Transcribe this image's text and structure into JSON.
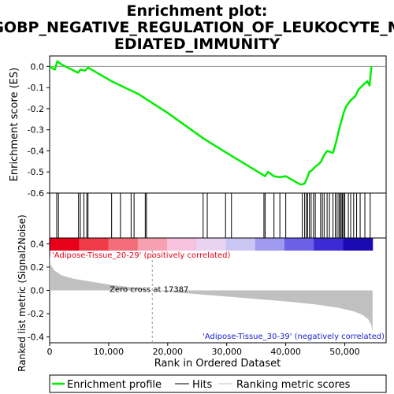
{
  "chart_data": {
    "type": "line",
    "title_lines": [
      "Enrichment plot:",
      "GOBP_NEGATIVE_REGULATION_OF_LEUKOCYTE_M",
      "EDIATED_IMMUNITY"
    ],
    "top_panel": {
      "ylabel": "Enrichment score (ES)",
      "ylim": [
        -0.6,
        0.05
      ],
      "yticks": [
        0.0,
        -0.1,
        -0.2,
        -0.3,
        -0.4,
        -0.5,
        -0.6
      ],
      "ytick_labels": [
        "0.0",
        "-0.1",
        "-0.2",
        "-0.3",
        "-0.4",
        "-0.5",
        "-0.6"
      ],
      "series": [
        {
          "name": "Enrichment profile",
          "color": "#00ee00",
          "x": [
            0,
            900,
            1300,
            2000,
            4800,
            5200,
            6000,
            6500,
            10500,
            15000,
            20000,
            26000,
            30000,
            36500,
            37000,
            38000,
            39000,
            40000,
            42500,
            43200,
            43600,
            44000,
            44500,
            45000,
            45500,
            46000,
            46500,
            47000,
            48000,
            48600,
            49000,
            49400,
            49800,
            50200,
            51000,
            51800,
            52300,
            53000,
            53800,
            54200,
            54500
          ],
          "y": [
            0.0,
            -0.015,
            0.025,
            0.01,
            -0.03,
            -0.015,
            -0.02,
            -0.005,
            -0.07,
            -0.13,
            -0.22,
            -0.34,
            -0.41,
            -0.52,
            -0.5,
            -0.52,
            -0.525,
            -0.52,
            -0.56,
            -0.555,
            -0.53,
            -0.5,
            -0.49,
            -0.475,
            -0.465,
            -0.45,
            -0.42,
            -0.4,
            -0.41,
            -0.35,
            -0.3,
            -0.26,
            -0.22,
            -0.19,
            -0.16,
            -0.14,
            -0.11,
            -0.09,
            -0.07,
            -0.09,
            0.0
          ]
        }
      ]
    },
    "hits": [
      1200,
      1500,
      4900,
      5200,
      5800,
      6300,
      6500,
      10500,
      12000,
      13800,
      14300,
      16200,
      16400,
      26000,
      26700,
      29800,
      30800,
      36300,
      36500,
      38000,
      39000,
      40000,
      42800,
      43200,
      43500,
      43700,
      44000,
      44300,
      44700,
      45000,
      45900,
      46200,
      46500,
      47000,
      47400,
      48000,
      48400,
      48700,
      49000,
      49200,
      49400,
      49600,
      49800,
      50000,
      50600,
      51000,
      51500,
      52000,
      52600,
      53400,
      54300
    ],
    "ranking_bar": {
      "label_pos": "'Adipose-Tissue_20-29' (positively correlated)",
      "label_neg": "'Adipose-Tissue_30-39' (negatively correlated)",
      "colors": [
        "#e8001a",
        "#f03a48",
        "#f46d78",
        "#f7a0b0",
        "#f7c2de",
        "#e8d4f2",
        "#c9c6f4",
        "#9f99f0",
        "#6c60e6",
        "#3b2ad6",
        "#1a0ab4"
      ]
    },
    "bottom_panel": {
      "xlabel": "Rank in Ordered Dataset",
      "ylabel": "Ranked list metric (Signal2Noise)",
      "ylim": [
        -0.45,
        0.45
      ],
      "yticks": [
        0.4,
        0.2,
        0.0,
        -0.2,
        -0.4
      ],
      "ytick_labels": [
        "0.4",
        "0.2",
        "0.0",
        "-0.2",
        "-0.4"
      ],
      "xticks": [
        0,
        10000,
        20000,
        30000,
        40000,
        50000
      ],
      "xtick_labels": [
        "0",
        "10,000",
        "20,000",
        "30,000",
        "40,000",
        "50,000"
      ],
      "xlim": [
        0,
        57000
      ],
      "n_genes": 54700,
      "zero_cross": 17387,
      "zero_cross_label": "Zero cross at 17387",
      "metric_profile": {
        "x": [
          0,
          200,
          800,
          2000,
          4000,
          7000,
          10000,
          14000,
          17387,
          22000,
          28000,
          34000,
          40000,
          45000,
          49000,
          51500,
          53000,
          54000,
          54500,
          54700
        ],
        "y": [
          0.3,
          0.22,
          0.17,
          0.13,
          0.1,
          0.075,
          0.05,
          0.025,
          0.0,
          -0.02,
          -0.045,
          -0.07,
          -0.095,
          -0.12,
          -0.15,
          -0.18,
          -0.21,
          -0.25,
          -0.3,
          -0.36
        ]
      }
    },
    "legend": [
      {
        "label": "Enrichment profile",
        "color": "#00ee00"
      },
      {
        "label": "Hits",
        "color": "#000000"
      },
      {
        "label": "Ranking metric scores",
        "color": "#c0c0c0"
      }
    ]
  }
}
